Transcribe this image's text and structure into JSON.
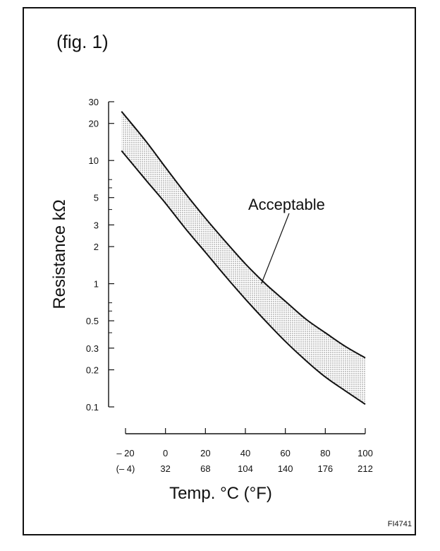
{
  "figure": {
    "label": "(fig. 1)",
    "code": "FI4741"
  },
  "chart_data": {
    "type": "area",
    "title": "",
    "xlabel": "Temp. °C (°F)",
    "ylabel": "Resistance kΩ",
    "y_scale": "log",
    "xlim": [
      -20,
      100
    ],
    "ylim": [
      0.1,
      30
    ],
    "x_ticks": [
      {
        "c": "– 20",
        "f": "(– 4)",
        "v": -20
      },
      {
        "c": "0",
        "f": "32",
        "v": 0
      },
      {
        "c": "20",
        "f": "68",
        "v": 20
      },
      {
        "c": "40",
        "f": "104",
        "v": 40
      },
      {
        "c": "60",
        "f": "140",
        "v": 60
      },
      {
        "c": "80",
        "f": "176",
        "v": 80
      },
      {
        "c": "100",
        "f": "212",
        "v": 100
      }
    ],
    "y_tick_labels": [
      {
        "label": "30",
        "v": 30
      },
      {
        "label": "20",
        "v": 20
      },
      {
        "label": "10",
        "v": 10
      },
      {
        "label": "5",
        "v": 5
      },
      {
        "label": "3",
        "v": 3
      },
      {
        "label": "2",
        "v": 2
      },
      {
        "label": "1",
        "v": 1
      },
      {
        "label": "0.5",
        "v": 0.5
      },
      {
        "label": "0.3",
        "v": 0.3
      },
      {
        "label": "0.2",
        "v": 0.2
      },
      {
        "label": "0.1",
        "v": 0.1
      }
    ],
    "y_minor_ticks": [
      7,
      6,
      4,
      0.7,
      0.6,
      0.4
    ],
    "band": {
      "name": "Acceptable",
      "x": [
        -22,
        -10,
        0,
        10,
        20,
        30,
        40,
        50,
        60,
        70,
        80,
        90,
        100
      ],
      "upper": [
        25,
        14.5,
        8.8,
        5.4,
        3.4,
        2.2,
        1.45,
        1.0,
        0.72,
        0.52,
        0.4,
        0.31,
        0.25
      ],
      "lower": [
        12,
        7.0,
        4.5,
        2.8,
        1.8,
        1.15,
        0.75,
        0.5,
        0.34,
        0.24,
        0.175,
        0.135,
        0.105
      ]
    },
    "annotation": {
      "text": "Acceptable",
      "point": [
        48,
        1.0
      ]
    },
    "grid": false
  }
}
